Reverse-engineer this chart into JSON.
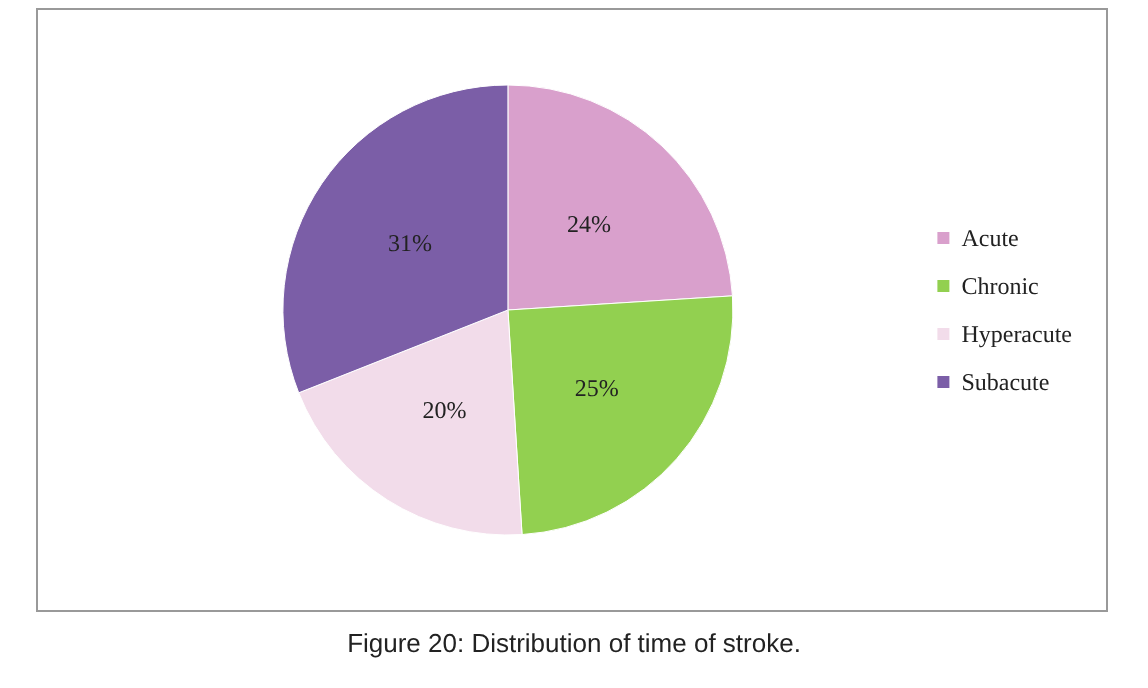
{
  "chart_data": {
    "type": "pie",
    "categories": [
      "Acute",
      "Chronic",
      "Hyperacute",
      "Subacute"
    ],
    "values": [
      24,
      25,
      20,
      31
    ],
    "colors": [
      "#d9a0cc",
      "#92d050",
      "#f2dcea",
      "#7b5ea7"
    ],
    "value_labels": [
      "24%",
      "25%",
      "20%",
      "31%"
    ],
    "legend": "right",
    "annotations": [
      "Figure 20: Distribution of time of stroke."
    ]
  }
}
